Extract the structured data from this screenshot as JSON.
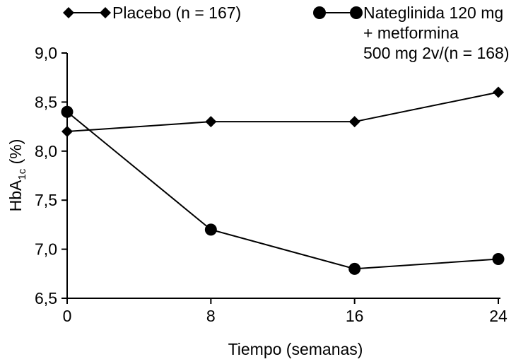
{
  "chart_data": {
    "type": "line",
    "xlabel": "Tiempo (semanas)",
    "ylabel": {
      "main": "HbA",
      "sub": "1c",
      "unit": " (%)"
    },
    "x": [
      0,
      8,
      16,
      24
    ],
    "xticks": [
      "0",
      "8",
      "16",
      "24"
    ],
    "xlim": [
      0,
      24
    ],
    "ylim": [
      6.5,
      9.0
    ],
    "yticks": [
      "6,5",
      "7,0",
      "7,5",
      "8,0",
      "8,5",
      "9,0"
    ],
    "ytick_values": [
      6.5,
      7.0,
      7.5,
      8.0,
      8.5,
      9.0
    ],
    "grid": false,
    "legend_position": "top",
    "series": [
      {
        "name": "Placebo (n = 167)",
        "name_lines": [
          "Placebo (n = 167)"
        ],
        "marker": "diamond",
        "color": "#000000",
        "values": [
          8.2,
          8.3,
          8.3,
          8.6
        ]
      },
      {
        "name": "Nateglinida 120 mg + metformina 500 mg 2v/(n = 168)",
        "name_lines": [
          "Nateglinida 120 mg",
          "+ metformina",
          "500 mg 2v/(n = 168)"
        ],
        "marker": "circle",
        "color": "#000000",
        "values": [
          8.4,
          7.2,
          6.8,
          6.9
        ]
      }
    ]
  }
}
